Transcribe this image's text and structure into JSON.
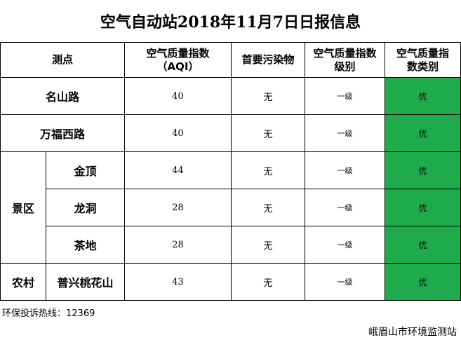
{
  "title": "空气自动站2018年11月7日日报信息",
  "headers": {
    "point": "测点",
    "aqi_line1": "空气质量指数",
    "aqi_line2": "（AQI）",
    "pollutant": "首要污染物",
    "level_line1": "空气质量指数",
    "level_line2": "级别",
    "category_line1": "空气质量指",
    "category_line2": "数类别"
  },
  "groups": {
    "scenic": "景区",
    "village": "农村"
  },
  "rows": [
    {
      "name": "名山路",
      "aqi": "40",
      "pollutant": "无",
      "level": "一级",
      "category": "优"
    },
    {
      "name": "万福西路",
      "aqi": "40",
      "pollutant": "无",
      "level": "一级",
      "category": "优"
    },
    {
      "name": "金顶",
      "aqi": "44",
      "pollutant": "无",
      "level": "一级",
      "category": "优"
    },
    {
      "name": "龙洞",
      "aqi": "28",
      "pollutant": "无",
      "level": "一级",
      "category": "优"
    },
    {
      "name": "茶地",
      "aqi": "28",
      "pollutant": "无",
      "level": "一级",
      "category": "优"
    },
    {
      "name": "普兴桃花山",
      "aqi": "43",
      "pollutant": "无",
      "level": "一级",
      "category": "优"
    }
  ],
  "hotline": "环保投诉热线：12369",
  "station": "峨眉山市环境监测站",
  "colors": {
    "excellent": "#1faa4b"
  }
}
